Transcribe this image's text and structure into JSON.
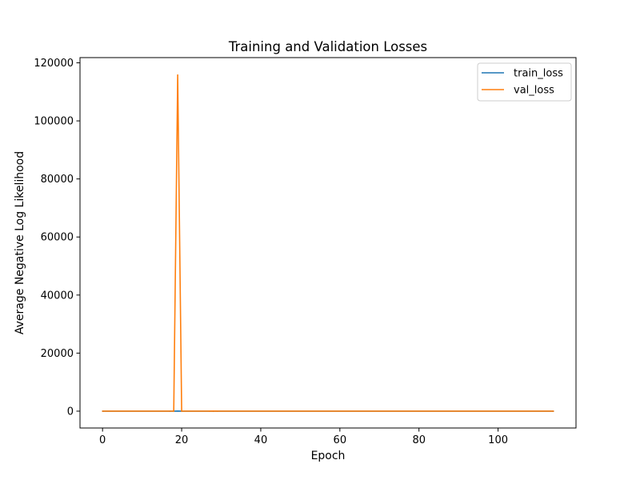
{
  "chart_data": {
    "type": "line",
    "title": "Training and Validation Losses",
    "xlabel": "Epoch",
    "ylabel": "Average Negative Log Likelihood",
    "xlim": [
      -5.7,
      119.7
    ],
    "ylim": [
      -5800,
      121800
    ],
    "xticks": [
      0,
      20,
      40,
      60,
      80,
      100
    ],
    "yticks": [
      0,
      20000,
      40000,
      60000,
      80000,
      100000,
      120000
    ],
    "grid": false,
    "legend_position": "top-right",
    "series": [
      {
        "name": "train_loss",
        "color": "#1f77b4",
        "points": [
          [
            0,
            5
          ],
          [
            17,
            4
          ],
          [
            18,
            6
          ],
          [
            19,
            25
          ],
          [
            20,
            4
          ],
          [
            28,
            3
          ],
          [
            114,
            1
          ]
        ]
      },
      {
        "name": "val_loss",
        "color": "#ff7f0e",
        "points": [
          [
            0,
            3
          ],
          [
            18,
            3
          ],
          [
            19,
            115800
          ],
          [
            20,
            3
          ],
          [
            27,
            3
          ],
          [
            28,
            50
          ],
          [
            29,
            2
          ],
          [
            114,
            1
          ]
        ]
      }
    ]
  }
}
